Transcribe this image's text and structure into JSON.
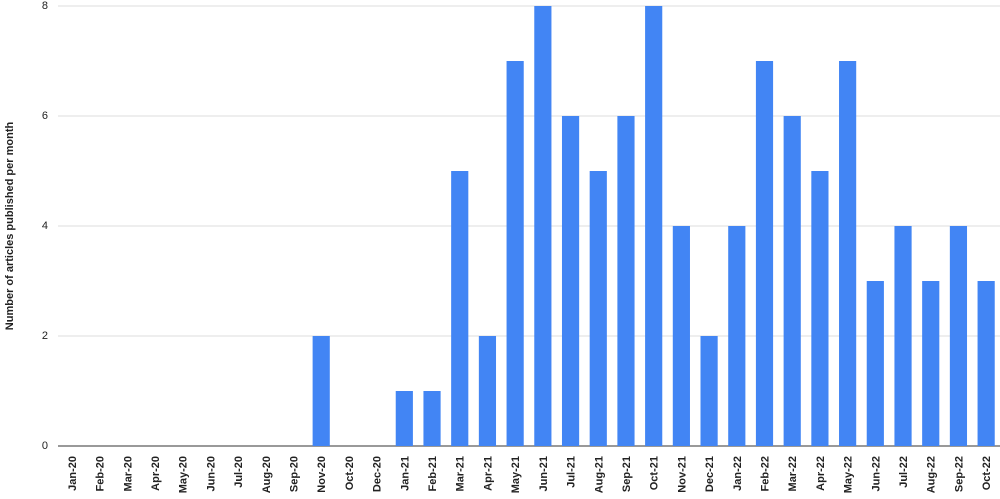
{
  "chart_data": {
    "type": "bar",
    "y_label": "Number of articles published per month",
    "categories": [
      "Jan-20",
      "Feb-20",
      "Mar-20",
      "Apr-20",
      "May-20",
      "Jun-20",
      "Jul-20",
      "Aug-20",
      "Sep-20",
      "Nov-20",
      "Oct-20",
      "Dec-20",
      "Jan-21",
      "Feb-21",
      "Mar-21",
      "Apr-21",
      "May-21",
      "Jun-21",
      "Jul-21",
      "Aug-21",
      "Sep-21",
      "Oct-21",
      "Nov-21",
      "Dec-21",
      "Jan-22",
      "Feb-22",
      "Mar-22",
      "Apr-22",
      "May-22",
      "Jun-22",
      "Jul-22",
      "Aug-22",
      "Sep-22",
      "Oct-22"
    ],
    "values": [
      0,
      0,
      0,
      0,
      0,
      0,
      0,
      0,
      0,
      2,
      0,
      0,
      1,
      1,
      5,
      2,
      7,
      8,
      6,
      5,
      6,
      8,
      4,
      2,
      4,
      7,
      6,
      5,
      7,
      3,
      4,
      3,
      4,
      3
    ],
    "color": "#4285f4",
    "ylim": [
      0,
      8
    ],
    "yticks": [
      0,
      2,
      4,
      6,
      8
    ],
    "grid": true
  }
}
